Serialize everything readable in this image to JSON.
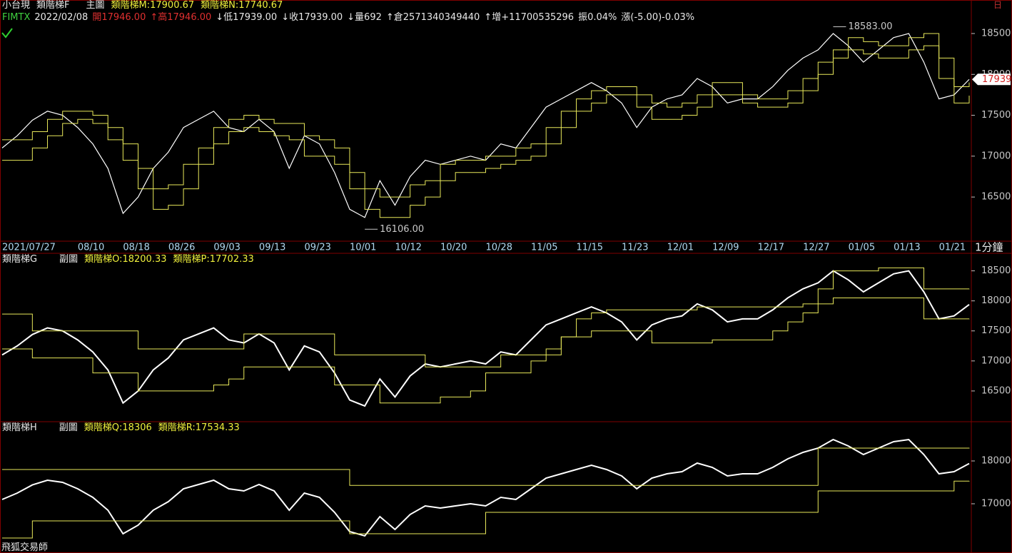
{
  "window": {
    "corner_icon": "日",
    "watermark": "飛狐交易師"
  },
  "quote_bar": {
    "symbol": "FIMTX",
    "date": "2022/02/08",
    "open": "開17946.00",
    "high": "↑高17946.00",
    "low": "↓低17939.00",
    "close": "↓收17939.00",
    "volume": "↓量692",
    "open_interest": "↑倉2571340349440",
    "change_oi": "↑增+11700535296",
    "amplitude": "振0.04%",
    "change": "漲(-5.00)-0.03%"
  },
  "chart_data": [
    {
      "type": "line",
      "title": "小台現",
      "subtitle": "類階梯F",
      "panel_label": "主圖",
      "interval_label": "1分鐘",
      "categories": [
        "2021/07/27",
        null,
        null,
        null,
        null,
        "08/10",
        null,
        null,
        "08/18",
        null,
        null,
        "08/26",
        null,
        null,
        "09/03",
        null,
        null,
        "09/13",
        null,
        null,
        "09/23",
        null,
        null,
        "10/01",
        null,
        null,
        "10/12",
        null,
        null,
        "10/20",
        null,
        null,
        "10/28",
        null,
        null,
        "11/05",
        null,
        null,
        "11/15",
        null,
        null,
        "11/23",
        null,
        null,
        "12/01",
        null,
        null,
        "12/09",
        null,
        null,
        "12/17",
        null,
        null,
        "12/27",
        null,
        null,
        "01/05",
        null,
        null,
        "01/13",
        null,
        null,
        "01/21",
        null,
        null
      ],
      "series": [
        {
          "color": "#ffffff",
          "values": [
            17100,
            17250,
            17440,
            17550,
            17500,
            17350,
            17150,
            16850,
            16300,
            16500,
            16850,
            17050,
            17350,
            17450,
            17550,
            17350,
            17300,
            17450,
            17300,
            16850,
            17250,
            17150,
            16800,
            16350,
            16250,
            16700,
            16400,
            16750,
            16950,
            16900,
            16950,
            17000,
            16950,
            17150,
            17100,
            17350,
            17600,
            17700,
            17800,
            17900,
            17800,
            17650,
            17350,
            17600,
            17700,
            17750,
            17950,
            17850,
            17650,
            17700,
            17700,
            17850,
            18050,
            18200,
            18300,
            18500,
            18350,
            18150,
            18300,
            18450,
            18500,
            18150,
            17700,
            17750,
            17939
          ]
        },
        {
          "name": "類階梯M:17900.67",
          "color": "#e8e85a",
          "style": "step",
          "values": [
            17200,
            17200,
            17300,
            17450,
            17550,
            17550,
            17500,
            17350,
            17150,
            16850,
            16600,
            16650,
            16900,
            17100,
            17350,
            17450,
            17500,
            17450,
            17400,
            17400,
            17250,
            17200,
            17100,
            16800,
            16600,
            16500,
            16500,
            16650,
            16700,
            16900,
            16950,
            16950,
            17000,
            17000,
            17100,
            17150,
            17350,
            17550,
            17700,
            17800,
            17850,
            17850,
            17750,
            17650,
            17600,
            17650,
            17750,
            17900,
            17900,
            17750,
            17700,
            17700,
            17800,
            17950,
            18150,
            18300,
            18450,
            18400,
            18350,
            18350,
            18450,
            18500,
            18200,
            17850,
            17900.67
          ]
        },
        {
          "name": "類階梯N:17740.67",
          "color": "#e8e85a",
          "style": "step",
          "values": [
            16950,
            16950,
            17100,
            17250,
            17400,
            17450,
            17400,
            17200,
            16950,
            16600,
            16350,
            16400,
            16600,
            16900,
            17150,
            17300,
            17350,
            17300,
            17250,
            17200,
            17000,
            17000,
            16900,
            16600,
            16350,
            16250,
            16250,
            16400,
            16500,
            16700,
            16800,
            16800,
            16850,
            16900,
            16950,
            17000,
            17150,
            17350,
            17550,
            17650,
            17750,
            17750,
            17600,
            17450,
            17450,
            17500,
            17600,
            17750,
            17750,
            17650,
            17600,
            17600,
            17650,
            17800,
            18000,
            18200,
            18300,
            18250,
            18200,
            18200,
            18300,
            18350,
            17950,
            17650,
            17740.67
          ]
        }
      ],
      "ylim": [
        15960,
        18910
      ],
      "yticks": [
        16500,
        17000,
        17500,
        18000,
        18500
      ],
      "last_price": 17939,
      "annotations": [
        {
          "value": 18583,
          "label": "18583.00"
        },
        {
          "value": 16106,
          "label": "16106.00"
        }
      ]
    },
    {
      "type": "line",
      "title": "類階梯G",
      "panel_label": "副圖",
      "series": [
        {
          "color": "#ffffff",
          "values": [
            17100,
            17250,
            17440,
            17550,
            17500,
            17350,
            17150,
            16850,
            16300,
            16500,
            16850,
            17050,
            17350,
            17450,
            17550,
            17350,
            17300,
            17450,
            17300,
            16850,
            17250,
            17150,
            16800,
            16350,
            16250,
            16700,
            16400,
            16750,
            16950,
            16900,
            16950,
            17000,
            16950,
            17150,
            17100,
            17350,
            17600,
            17700,
            17800,
            17900,
            17800,
            17650,
            17350,
            17600,
            17700,
            17750,
            17950,
            17850,
            17650,
            17700,
            17700,
            17850,
            18050,
            18200,
            18300,
            18500,
            18350,
            18150,
            18300,
            18450,
            18500,
            18150,
            17700,
            17750,
            17939
          ]
        },
        {
          "name": "類階梯O:18200.33",
          "color": "#e8e85a",
          "style": "step",
          "values": [
            17780,
            17780,
            17500,
            17500,
            17500,
            17500,
            17500,
            17500,
            17500,
            17200,
            17200,
            17200,
            17200,
            17200,
            17200,
            17200,
            17450,
            17450,
            17450,
            17450,
            17450,
            17450,
            17100,
            17100,
            17100,
            17100,
            17100,
            17100,
            16900,
            16900,
            16900,
            16900,
            16900,
            17100,
            17100,
            17100,
            17100,
            17400,
            17700,
            17800,
            17850,
            17850,
            17850,
            17850,
            17850,
            17850,
            17900,
            17900,
            17900,
            17900,
            17900,
            17900,
            17900,
            17950,
            18200,
            18500,
            18500,
            18500,
            18550,
            18550,
            18550,
            18200,
            18200,
            18200,
            18200.33
          ]
        },
        {
          "name": "類階梯P:17702.33",
          "color": "#e8e85a",
          "style": "step",
          "values": [
            17200,
            17200,
            17050,
            17050,
            17050,
            17050,
            16800,
            16800,
            16800,
            16500,
            16500,
            16500,
            16500,
            16500,
            16600,
            16700,
            16900,
            16900,
            16900,
            16900,
            16900,
            16900,
            16600,
            16600,
            16600,
            16300,
            16300,
            16300,
            16300,
            16400,
            16400,
            16500,
            16800,
            16800,
            16800,
            17000,
            17200,
            17400,
            17400,
            17500,
            17500,
            17500,
            17500,
            17300,
            17300,
            17300,
            17300,
            17350,
            17350,
            17350,
            17350,
            17500,
            17650,
            17800,
            17950,
            18050,
            18050,
            18050,
            18050,
            18050,
            18050,
            17700,
            17700,
            17700,
            17702.33
          ]
        }
      ],
      "ylim": [
        16000,
        18780
      ],
      "yticks": [
        16500,
        17000,
        17500,
        18000,
        18500
      ]
    },
    {
      "type": "line",
      "title": "類階梯H",
      "panel_label": "副圖",
      "series": [
        {
          "color": "#ffffff",
          "values": [
            17100,
            17250,
            17440,
            17550,
            17500,
            17350,
            17150,
            16850,
            16300,
            16500,
            16850,
            17050,
            17350,
            17450,
            17550,
            17350,
            17300,
            17450,
            17300,
            16850,
            17250,
            17150,
            16800,
            16350,
            16250,
            16700,
            16400,
            16750,
            16950,
            16900,
            16950,
            17000,
            16950,
            17150,
            17100,
            17350,
            17600,
            17700,
            17800,
            17900,
            17800,
            17650,
            17350,
            17600,
            17700,
            17750,
            17950,
            17850,
            17650,
            17700,
            17700,
            17850,
            18050,
            18200,
            18300,
            18500,
            18350,
            18150,
            18300,
            18450,
            18500,
            18150,
            17700,
            17750,
            17939
          ]
        },
        {
          "name": "類階梯Q:18306",
          "color": "#e8e85a",
          "style": "step",
          "values": [
            17800,
            17800,
            17800,
            17800,
            17800,
            17800,
            17800,
            17800,
            17800,
            17800,
            17800,
            17800,
            17800,
            17800,
            17800,
            17800,
            17800,
            17800,
            17800,
            17800,
            17800,
            17800,
            17800,
            17430,
            17430,
            17430,
            17430,
            17430,
            17430,
            17430,
            17430,
            17430,
            17430,
            17430,
            17430,
            17430,
            17430,
            17430,
            17430,
            17430,
            17430,
            17430,
            17430,
            17430,
            17430,
            17430,
            17430,
            17430,
            17430,
            17430,
            17430,
            17430,
            17430,
            17430,
            18300,
            18300,
            18300,
            18300,
            18300,
            18300,
            18300,
            18300,
            18300,
            18300,
            18306
          ]
        },
        {
          "name": "類階梯R:17534.33",
          "color": "#e8e85a",
          "style": "step",
          "values": [
            16200,
            16200,
            16600,
            16600,
            16600,
            16600,
            16600,
            16600,
            16600,
            16600,
            16600,
            16600,
            16600,
            16600,
            16600,
            16600,
            16600,
            16600,
            16600,
            16600,
            16600,
            16600,
            16600,
            16300,
            16300,
            16300,
            16300,
            16300,
            16300,
            16300,
            16300,
            16300,
            16800,
            16800,
            16800,
            16800,
            16800,
            16800,
            16800,
            16800,
            16800,
            16800,
            16800,
            16800,
            16800,
            16800,
            16800,
            16800,
            16800,
            16800,
            16800,
            16800,
            16800,
            16800,
            17300,
            17300,
            17300,
            17300,
            17300,
            17300,
            17300,
            17300,
            17300,
            17530,
            17534.33
          ]
        }
      ],
      "ylim": [
        15900,
        18900
      ],
      "yticks": [
        17000,
        18000
      ]
    }
  ]
}
